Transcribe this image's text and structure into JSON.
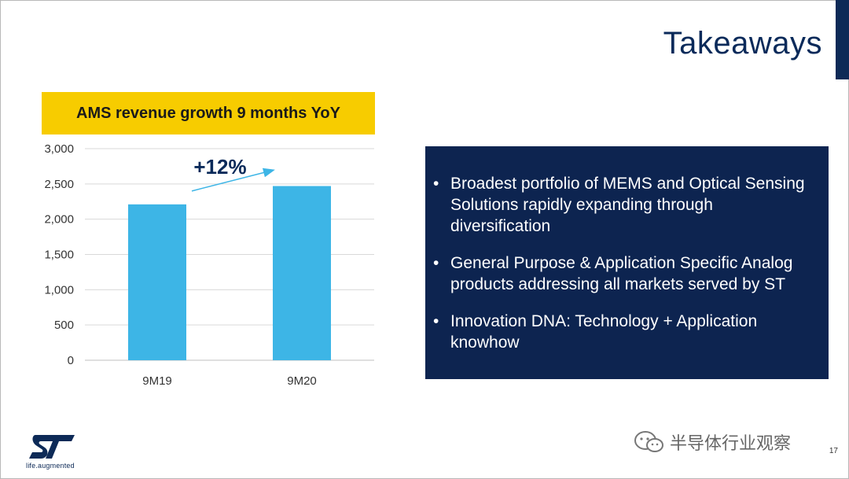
{
  "slide": {
    "title": "Takeaways",
    "page_number": "17",
    "logo_tagline": "life.augmented",
    "watermark": "半导体行业观察"
  },
  "chart_title": "AMS revenue growth 9 months YoY",
  "growth_label": "+12%",
  "bullets": [
    "Broadest portfolio of MEMS and Optical Sensing Solutions rapidly expanding through diversification",
    "General Purpose & Application Specific Analog products addressing all markets served by ST",
    "Innovation DNA: Technology + Application knowhow"
  ],
  "colors": {
    "bar": "#3db5e6",
    "title_box": "#f7cc00",
    "panel": "#0d2450",
    "gridline": "#d9d9d9",
    "arrow": "#3db5e6"
  },
  "chart_data": {
    "type": "bar",
    "title": "AMS revenue growth 9 months YoY",
    "categories": [
      "9M19",
      "9M20"
    ],
    "values": [
      2210,
      2470
    ],
    "ylim": [
      0,
      3000
    ],
    "yticks": [
      0,
      500,
      1000,
      1500,
      2000,
      2500,
      3000
    ],
    "ytick_labels": [
      "0",
      "500",
      "1,000",
      "1,500",
      "2,000",
      "2,500",
      "3,000"
    ],
    "grid": true,
    "legend": "none",
    "annotation": "+12%"
  }
}
